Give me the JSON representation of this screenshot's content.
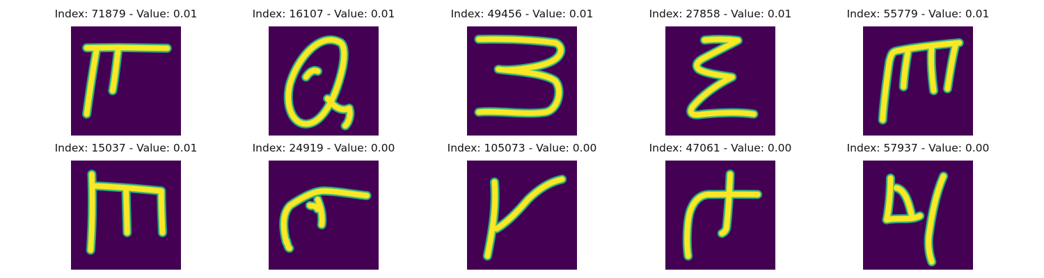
{
  "colors": {
    "background": "#ffffff",
    "image_bg": "#440154",
    "stroke_core": "#fde725",
    "stroke_mid": "#5ec962",
    "stroke_edge": "#21918c"
  },
  "panels": [
    {
      "title": "Index: 71879 - Value: 0.01",
      "glyph": "pi-hook"
    },
    {
      "title": "Index: 16107 - Value: 0.01",
      "glyph": "loop-alpha"
    },
    {
      "title": "Index: 49456 - Value: 0.01",
      "glyph": "three"
    },
    {
      "title": "Index: 27858 - Value: 0.01",
      "glyph": "sigma"
    },
    {
      "title": "Index: 55779 - Value: 0.01",
      "glyph": "m-slanted"
    },
    {
      "title": "Index: 15037 - Value: 0.01",
      "glyph": "m-upright"
    },
    {
      "title": "Index: 24919 - Value: 0.00",
      "glyph": "hook-cross"
    },
    {
      "title": "Index: 105073 - Value: 0.00",
      "glyph": "y-slant"
    },
    {
      "title": "Index: 47061 - Value: 0.00",
      "glyph": "plus-hook"
    },
    {
      "title": "Index: 57937 - Value: 0.00",
      "glyph": "y-curly"
    }
  ]
}
